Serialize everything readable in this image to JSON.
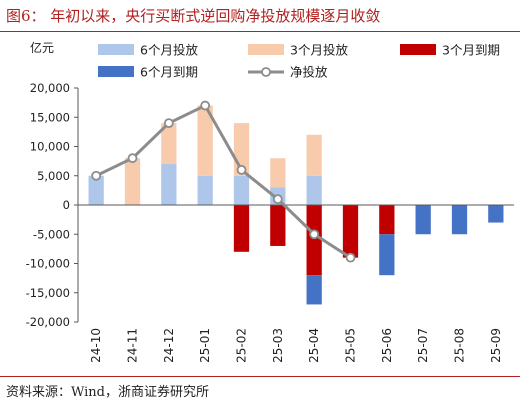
{
  "header": {
    "title": "图6：  年初以来，央行买断式逆回购净投放规模逐月收敛"
  },
  "footer": {
    "source": "资料来源：Wind，浙商证券研究所"
  },
  "chart_data": {
    "type": "bar",
    "unit_label": "亿元",
    "categories": [
      "24-10",
      "24-11",
      "24-12",
      "25-01",
      "25-02",
      "25-03",
      "25-04",
      "25-05",
      "25-06",
      "25-07",
      "25-08",
      "25-09"
    ],
    "ylim": [
      -20000,
      20000
    ],
    "yticks": [
      20000,
      15000,
      10000,
      5000,
      0,
      -5000,
      -10000,
      -15000,
      -20000
    ],
    "ytick_labels": [
      "20,000",
      "15,000",
      "10,000",
      "5,000",
      "0",
      "-5,000",
      "-10,000",
      "-15,000",
      "-20,000"
    ],
    "grid": false,
    "legend_position": "top",
    "series": [
      {
        "name": "6个月投放",
        "kind": "bar",
        "color": "#adc6ea",
        "values": [
          5000,
          0,
          7000,
          5000,
          5000,
          3000,
          5000,
          0,
          0,
          0,
          0,
          0
        ]
      },
      {
        "name": "3个月投放",
        "kind": "bar",
        "color": "#f8cbad",
        "values": [
          0,
          8000,
          7000,
          12000,
          9000,
          5000,
          7000,
          0,
          0,
          0,
          0,
          0
        ]
      },
      {
        "name": "3个月到期",
        "kind": "bar",
        "color": "#c00000",
        "values": [
          0,
          0,
          0,
          0,
          -8000,
          -7000,
          -12000,
          -9000,
          -5000,
          0,
          0,
          0
        ]
      },
      {
        "name": "6个月到期",
        "kind": "bar",
        "color": "#4472c4",
        "values": [
          0,
          0,
          0,
          0,
          0,
          0,
          -5000,
          0,
          -7000,
          -5000,
          -5000,
          -3000
        ]
      },
      {
        "name": "净投放",
        "kind": "line",
        "color": "#8c8c8c",
        "values": [
          5000,
          8000,
          14000,
          17000,
          6000,
          1000,
          -5000,
          -9000,
          null,
          null,
          null,
          null
        ]
      }
    ]
  }
}
